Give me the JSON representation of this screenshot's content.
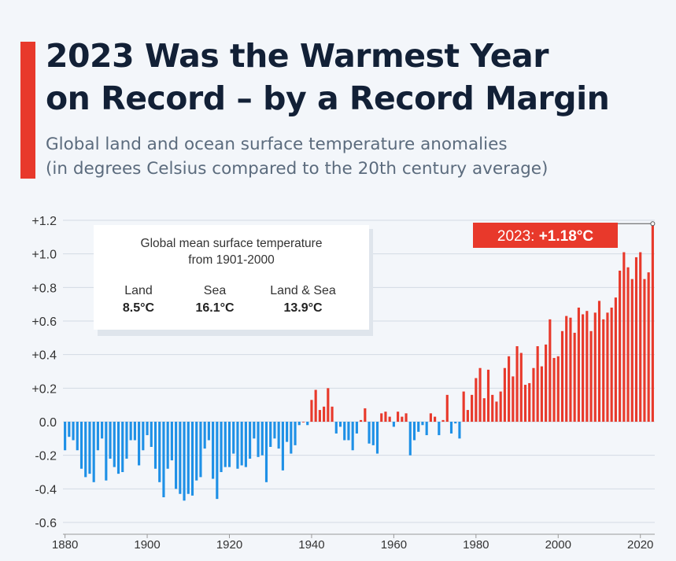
{
  "header": {
    "title_line1": "2023 Was the Warmest Year",
    "title_line2": "on Record – by a Record Margin",
    "subtitle_line1": "Global land and ocean surface temperature anomalies",
    "subtitle_line2": "(in degrees Celsius compared to the 20th century average)"
  },
  "colors": {
    "accent": "#e8392b",
    "positive_bar": "#e8392b",
    "negative_bar": "#1e90e6",
    "title": "#122036",
    "text": "#333333"
  },
  "infobox": {
    "heading_line1": "Global mean surface temperature",
    "heading_line2": "from 1901-2000",
    "items": [
      {
        "label": "Land",
        "value": "8.5°C"
      },
      {
        "label": "Sea",
        "value": "16.1°C"
      },
      {
        "label": "Land & Sea",
        "value": "13.9°C"
      }
    ]
  },
  "chart_data": {
    "type": "bar",
    "title": "",
    "xlabel": "",
    "ylabel": "",
    "ylim": [
      -0.6,
      1.2
    ],
    "xlim": [
      1880,
      2023
    ],
    "y_tick_labels": [
      "+1.2",
      "+1.0",
      "+0.8",
      "+0.6",
      "+0.4",
      "+0.2",
      "0.0",
      "-0.2",
      "-0.4",
      "-0.6"
    ],
    "y_tick_values": [
      1.2,
      1.0,
      0.8,
      0.6,
      0.4,
      0.2,
      0.0,
      -0.2,
      -0.4,
      -0.6
    ],
    "x_tick_labels": [
      "1880",
      "1900",
      "1920",
      "1940",
      "1960",
      "1980",
      "2000",
      "2020"
    ],
    "x_tick_values": [
      1880,
      1900,
      1920,
      1940,
      1960,
      1980,
      2000,
      2020
    ],
    "grid": true,
    "legend": "none",
    "annotation": {
      "prefix": "2023: ",
      "value_text": "+1.18°C",
      "year": 2023,
      "value": 1.18
    },
    "years_start": 1880,
    "values": [
      -0.17,
      -0.09,
      -0.11,
      -0.17,
      -0.28,
      -0.33,
      -0.31,
      -0.36,
      -0.17,
      -0.1,
      -0.35,
      -0.22,
      -0.27,
      -0.31,
      -0.3,
      -0.22,
      -0.11,
      -0.11,
      -0.26,
      -0.17,
      -0.08,
      -0.15,
      -0.28,
      -0.36,
      -0.45,
      -0.28,
      -0.23,
      -0.4,
      -0.43,
      -0.47,
      -0.43,
      -0.44,
      -0.35,
      -0.33,
      -0.16,
      -0.11,
      -0.34,
      -0.46,
      -0.3,
      -0.27,
      -0.27,
      -0.19,
      -0.28,
      -0.26,
      -0.27,
      -0.22,
      -0.1,
      -0.21,
      -0.2,
      -0.36,
      -0.15,
      -0.1,
      -0.16,
      -0.29,
      -0.12,
      -0.19,
      -0.14,
      -0.02,
      -0.0,
      -0.02,
      0.13,
      0.19,
      0.07,
      0.09,
      0.2,
      0.09,
      -0.07,
      -0.03,
      -0.11,
      -0.11,
      -0.17,
      -0.07,
      0.01,
      0.08,
      -0.13,
      -0.14,
      -0.19,
      0.05,
      0.06,
      0.03,
      -0.03,
      0.06,
      0.03,
      0.05,
      -0.2,
      -0.11,
      -0.06,
      -0.02,
      -0.08,
      0.05,
      0.03,
      -0.08,
      0.01,
      0.16,
      -0.07,
      -0.01,
      -0.1,
      0.18,
      0.07,
      0.16,
      0.26,
      0.32,
      0.14,
      0.31,
      0.16,
      0.12,
      0.18,
      0.32,
      0.39,
      0.27,
      0.45,
      0.41,
      0.22,
      0.23,
      0.32,
      0.45,
      0.33,
      0.46,
      0.61,
      0.38,
      0.39,
      0.54,
      0.63,
      0.62,
      0.53,
      0.68,
      0.64,
      0.66,
      0.54,
      0.65,
      0.72,
      0.61,
      0.65,
      0.68,
      0.74,
      0.9,
      1.01,
      0.92,
      0.85,
      0.98,
      1.01,
      0.85,
      0.89,
      1.18
    ]
  }
}
